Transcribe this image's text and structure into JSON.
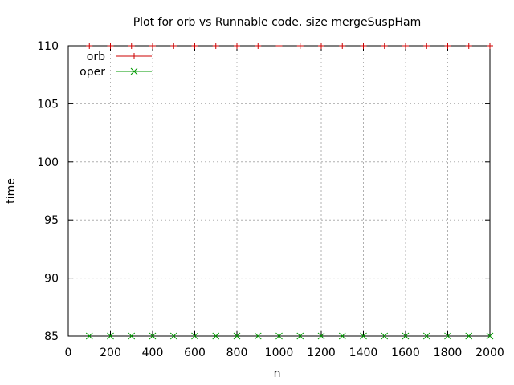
{
  "chart_data": {
    "type": "scatter",
    "title": "Plot for orb vs Runnable code, size mergeSuspHam",
    "xlabel": "n",
    "ylabel": "time",
    "xlim": [
      0,
      2000
    ],
    "ylim": [
      85,
      110
    ],
    "xticks": [
      0,
      200,
      400,
      600,
      800,
      1000,
      1200,
      1400,
      1600,
      1800,
      2000
    ],
    "yticks": [
      85,
      90,
      95,
      100,
      105,
      110
    ],
    "grid": true,
    "legend_position": "top-left",
    "x": [
      100,
      200,
      300,
      400,
      500,
      600,
      700,
      800,
      900,
      1000,
      1100,
      1200,
      1300,
      1400,
      1500,
      1600,
      1700,
      1800,
      1900,
      2000
    ],
    "series": [
      {
        "name": "orb",
        "color": "#cc0000",
        "marker": "plus",
        "values": [
          110,
          110,
          110,
          110,
          110,
          110,
          110,
          110,
          110,
          110,
          110,
          110,
          110,
          110,
          110,
          110,
          110,
          110,
          110,
          110
        ]
      },
      {
        "name": "oper",
        "color": "#009900",
        "marker": "cross",
        "values": [
          85,
          85,
          85,
          85,
          85,
          85,
          85,
          85,
          85,
          85,
          85,
          85,
          85,
          85,
          85,
          85,
          85,
          85,
          85,
          85
        ]
      }
    ]
  }
}
